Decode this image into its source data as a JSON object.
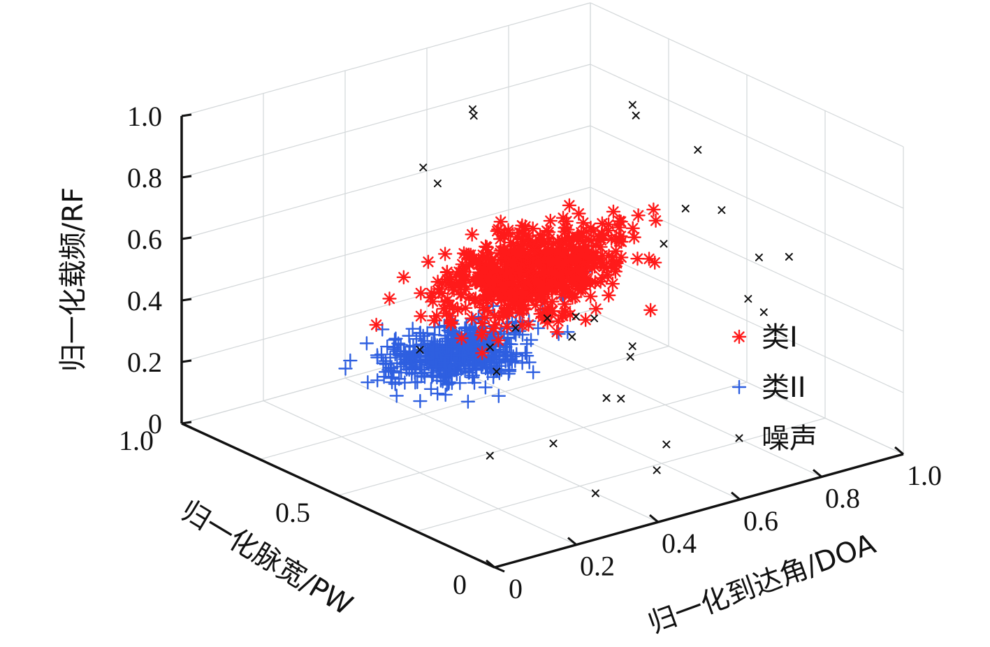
{
  "chart_data": {
    "type": "scatter3d",
    "axes": {
      "x": {
        "label": "归一化到达角/DOA",
        "ticks": [
          "0",
          "0.2",
          "0.4",
          "0.6",
          "0.8",
          "1.0"
        ],
        "range": [
          0,
          1
        ]
      },
      "y": {
        "label": "归一化脉宽/PW",
        "ticks": [
          "0",
          "0.5",
          "1.0"
        ],
        "range": [
          0,
          1
        ]
      },
      "z": {
        "label": "归一化载频/RF",
        "ticks": [
          "0",
          "0.2",
          "0.4",
          "0.6",
          "0.8",
          "1.0"
        ],
        "range": [
          0,
          1
        ]
      }
    },
    "grid": true,
    "legend_position": "right",
    "series": [
      {
        "name": "类I",
        "marker": "asterisk",
        "color": "#ff1a1a",
        "center": [
          0.46,
          0.48,
          0.56
        ],
        "spread": [
          0.1,
          0.05,
          0.06
        ],
        "count": 650,
        "points": [
          [
            0.2,
            0.3,
            0.55
          ],
          [
            0.25,
            0.35,
            0.58
          ],
          [
            0.6,
            0.55,
            0.62
          ],
          [
            0.65,
            0.58,
            0.64
          ],
          [
            0.7,
            0.55,
            0.6
          ],
          [
            0.75,
            0.6,
            0.6
          ],
          [
            0.55,
            0.45,
            0.66
          ],
          [
            0.3,
            0.38,
            0.45
          ]
        ]
      },
      {
        "name": "类II",
        "marker": "plus",
        "color": "#2e5fe0",
        "center": [
          0.3,
          0.52,
          0.34
        ],
        "spread": [
          0.08,
          0.05,
          0.03
        ],
        "count": 520,
        "points": [
          [
            0.55,
            0.5,
            0.44
          ],
          [
            0.6,
            0.52,
            0.46
          ],
          [
            0.65,
            0.56,
            0.46
          ],
          [
            0.7,
            0.6,
            0.46
          ],
          [
            0.5,
            0.5,
            0.42
          ],
          [
            0.2,
            0.62,
            0.41
          ],
          [
            0.42,
            0.48,
            0.42
          ]
        ]
      },
      {
        "name": "噪声",
        "marker": "x",
        "color": "#111111",
        "points": [
          [
            0.02,
            0.02,
            0.62
          ],
          [
            0.05,
            0.08,
            0.66
          ],
          [
            0.22,
            0.04,
            0.65
          ],
          [
            0.2,
            0.5,
            0.4
          ],
          [
            0.3,
            0.62,
            0.9
          ],
          [
            0.32,
            0.6,
            0.85
          ],
          [
            0.6,
            0.85,
            0.85
          ],
          [
            0.62,
            0.88,
            0.85
          ],
          [
            0.92,
            0.75,
            0.78
          ],
          [
            0.95,
            0.8,
            0.78
          ],
          [
            0.88,
            0.5,
            0.8
          ],
          [
            0.9,
            0.45,
            0.62
          ],
          [
            0.85,
            0.5,
            0.62
          ],
          [
            0.95,
            0.3,
            0.52
          ],
          [
            0.72,
            0.4,
            0.6
          ],
          [
            0.8,
            0.2,
            0.62
          ],
          [
            0.55,
            0.4,
            0.42
          ],
          [
            0.85,
            0.25,
            0.4
          ],
          [
            0.85,
            0.3,
            0.42
          ],
          [
            0.55,
            0.55,
            0.35
          ],
          [
            0.6,
            0.35,
            0.3
          ],
          [
            0.72,
            0.5,
            0.22
          ],
          [
            0.58,
            0.4,
            0.15
          ],
          [
            0.6,
            0.38,
            0.15
          ],
          [
            0.45,
            0.4,
            0.05
          ],
          [
            0.18,
            0.25,
            0.18
          ],
          [
            0.65,
            0.3,
            0.02
          ],
          [
            0.55,
            0.2,
            0.02
          ],
          [
            0.4,
            0.2,
            0.0
          ],
          [
            0.62,
            0.55,
            0.33
          ],
          [
            0.48,
            0.56,
            0.34
          ]
        ]
      }
    ]
  }
}
